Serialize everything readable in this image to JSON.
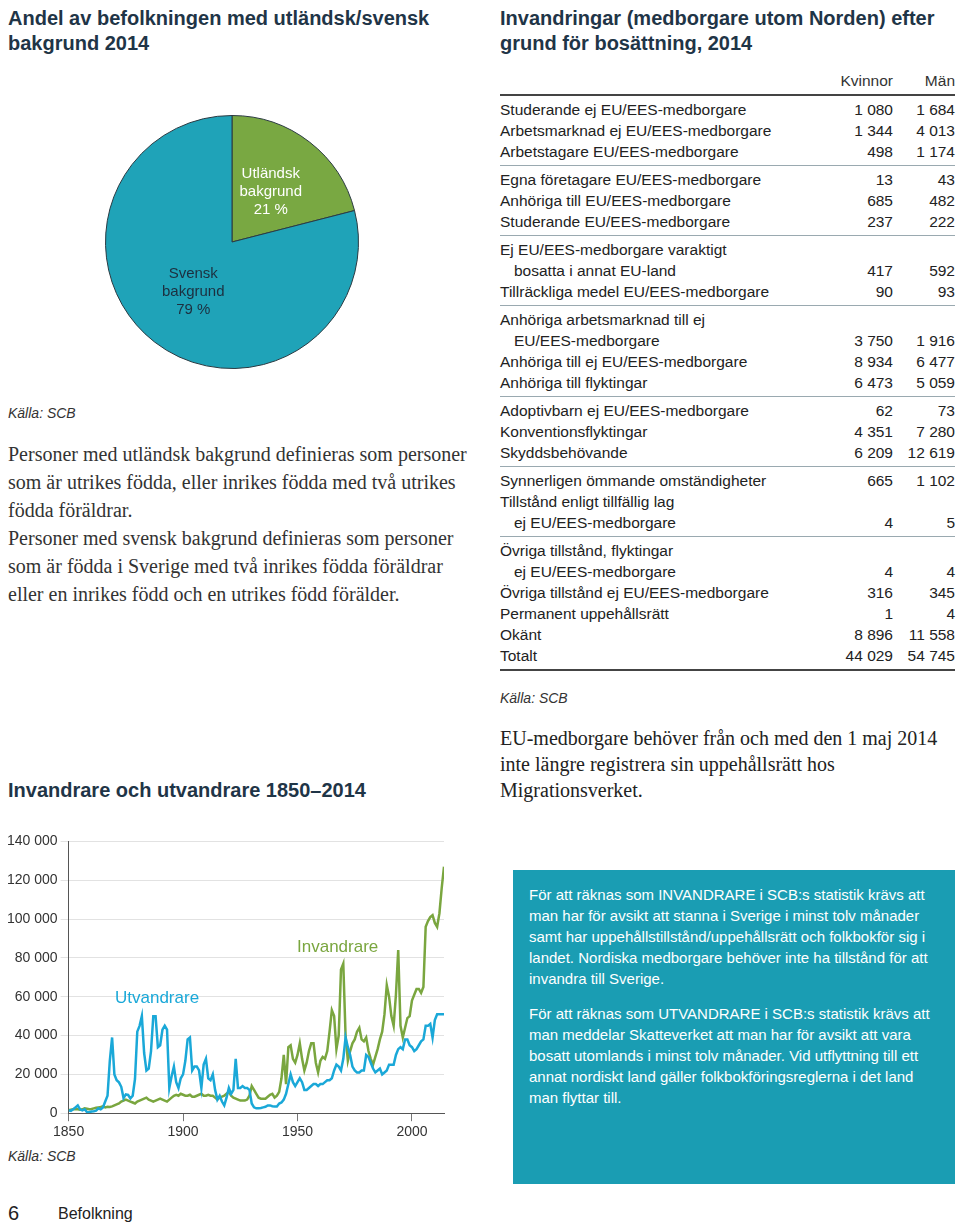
{
  "chart_data": [
    {
      "type": "pie",
      "title": "Andel av befolkningen med utländsk/svensk bakgrund 2014",
      "categories": [
        "Utländsk bakgrund",
        "Svensk bakgrund"
      ],
      "values": [
        21,
        79
      ],
      "value_labels": [
        "21 %",
        "79 %"
      ],
      "colors": [
        "#79a842",
        "#1fa3b8"
      ],
      "data_labels": true,
      "source": "Källa: SCB"
    },
    {
      "type": "line",
      "title": "Invandrare och utvandrare 1850–2014",
      "x": [
        1850,
        1851,
        1852,
        1853,
        1854,
        1855,
        1856,
        1857,
        1858,
        1859,
        1860,
        1861,
        1862,
        1863,
        1864,
        1865,
        1866,
        1867,
        1868,
        1869,
        1870,
        1871,
        1872,
        1873,
        1874,
        1875,
        1876,
        1877,
        1878,
        1879,
        1880,
        1881,
        1882,
        1883,
        1884,
        1885,
        1886,
        1887,
        1888,
        1889,
        1890,
        1891,
        1892,
        1893,
        1894,
        1895,
        1896,
        1897,
        1898,
        1899,
        1900,
        1901,
        1902,
        1903,
        1904,
        1905,
        1906,
        1907,
        1908,
        1909,
        1910,
        1911,
        1912,
        1913,
        1914,
        1915,
        1916,
        1917,
        1918,
        1919,
        1920,
        1921,
        1922,
        1923,
        1924,
        1925,
        1926,
        1927,
        1928,
        1929,
        1930,
        1931,
        1932,
        1933,
        1934,
        1935,
        1936,
        1937,
        1938,
        1939,
        1940,
        1941,
        1942,
        1943,
        1944,
        1945,
        1946,
        1947,
        1948,
        1949,
        1950,
        1951,
        1952,
        1953,
        1954,
        1955,
        1956,
        1957,
        1958,
        1959,
        1960,
        1961,
        1962,
        1963,
        1964,
        1965,
        1966,
        1967,
        1968,
        1969,
        1970,
        1971,
        1972,
        1973,
        1974,
        1975,
        1976,
        1977,
        1978,
        1979,
        1980,
        1981,
        1982,
        1983,
        1984,
        1985,
        1986,
        1987,
        1988,
        1989,
        1990,
        1991,
        1992,
        1993,
        1994,
        1995,
        1996,
        1997,
        1998,
        1999,
        2000,
        2001,
        2002,
        2003,
        2004,
        2005,
        2006,
        2007,
        2008,
        2009,
        2010,
        2011,
        2012,
        2013,
        2014
      ],
      "series": [
        {
          "name": "Utvandrare",
          "color": "#1aa8d8",
          "values": [
            1500,
            1200,
            2000,
            3000,
            4000,
            2000,
            1500,
            2000,
            600,
            500,
            900,
            1000,
            1300,
            2500,
            2000,
            3000,
            6000,
            9000,
            27000,
            39000,
            20000,
            17000,
            15900,
            13600,
            7800,
            9700,
            9400,
            7600,
            9000,
            17600,
            42000,
            45000,
            50000,
            31000,
            22000,
            23000,
            32000,
            50000,
            50000,
            34000,
            35000,
            43000,
            45000,
            43000,
            13000,
            19000,
            24000,
            16000,
            13000,
            18000,
            20000,
            27000,
            38000,
            39000,
            22000,
            24000,
            24000,
            22000,
            13000,
            25000,
            28000,
            18000,
            17000,
            20000,
            12000,
            7000,
            9000,
            6000,
            4000,
            8000,
            13000,
            10000,
            12000,
            28000,
            13000,
            13000,
            14000,
            13000,
            13000,
            12000,
            5000,
            3000,
            2500,
            2500,
            2700,
            3000,
            3300,
            4000,
            4000,
            3600,
            3500,
            3500,
            5000,
            5500,
            7000,
            10000,
            15000,
            20000,
            16000,
            14000,
            16000,
            18000,
            16000,
            12000,
            12000,
            13000,
            14000,
            15000,
            15000,
            14000,
            15000,
            15000,
            16000,
            17000,
            17000,
            18000,
            22000,
            25000,
            24000,
            22000,
            28000,
            39000,
            34000,
            30000,
            24000,
            22000,
            21000,
            21000,
            22000,
            22000,
            30000,
            29000,
            26000,
            23000,
            21000,
            22000,
            23000,
            20000,
            21000,
            22000,
            25000,
            25000,
            25000,
            30000,
            33000,
            34000,
            33000,
            38000,
            38000,
            35000,
            34000,
            32000,
            33000,
            35000,
            37000,
            38000,
            45000,
            45000,
            46000,
            39000,
            48000,
            51000,
            51000,
            51000,
            51000
          ]
        },
        {
          "name": "Invandrare",
          "color": "#7aa63f",
          "values": [
            1500,
            1800,
            2000,
            2200,
            2000,
            1800,
            2000,
            2500,
            2300,
            2000,
            2200,
            2500,
            2800,
            3000,
            3200,
            3500,
            3000,
            3300,
            3200,
            3500,
            4000,
            4500,
            5000,
            6000,
            6500,
            7000,
            6500,
            6000,
            5500,
            5000,
            6000,
            6500,
            7000,
            7500,
            8000,
            7000,
            6500,
            6000,
            6500,
            7000,
            7500,
            7000,
            6500,
            6000,
            7000,
            8000,
            9000,
            9500,
            9000,
            10000,
            9500,
            9000,
            9000,
            9500,
            8500,
            8500,
            9000,
            9500,
            10000,
            9000,
            9000,
            9500,
            9000,
            9000,
            8000,
            7000,
            8000,
            8500,
            9000,
            10000,
            11000,
            9000,
            8000,
            7500,
            7000,
            6500,
            6500,
            6500,
            7000,
            9000,
            14000,
            12000,
            10000,
            8000,
            7500,
            7500,
            7500,
            8500,
            9500,
            10000,
            8000,
            9000,
            11000,
            18000,
            30000,
            15000,
            34000,
            35000,
            28000,
            26000,
            30000,
            36000,
            28000,
            22000,
            26000,
            32000,
            36000,
            36000,
            26000,
            21000,
            27000,
            29000,
            28000,
            32000,
            42000,
            53000,
            50000,
            33000,
            40000,
            74000,
            77000,
            40000,
            27000,
            32000,
            36000,
            38000,
            42000,
            44000,
            38000,
            37000,
            39000,
            32000,
            28000,
            25000,
            29000,
            33000,
            38000,
            42000,
            51000,
            66000,
            60000,
            50000,
            45000,
            61000,
            84000,
            45000,
            39000,
            44000,
            49000,
            50000,
            58000,
            61000,
            64000,
            64000,
            62000,
            65000,
            96000,
            99000,
            101000,
            102000,
            98000,
            96000,
            103000,
            116000,
            127000
          ]
        }
      ],
      "xlim": [
        1850,
        2014
      ],
      "xticks": [
        1850,
        1900,
        1950,
        2000
      ],
      "ylim": [
        0,
        140000
      ],
      "yticks": [
        0,
        {
          "value": 20000,
          "label": "20 000"
        },
        {
          "value": 40000,
          "label": "40 000"
        },
        {
          "value": 60000,
          "label": "60 000"
        },
        {
          "value": 80000,
          "label": "80 000"
        },
        {
          "value": 100000,
          "label": "100 000"
        },
        {
          "value": 120000,
          "label": "120 000"
        },
        {
          "value": 140000,
          "label": "140 000"
        }
      ],
      "grid": true,
      "source": "Källa: SCB"
    }
  ],
  "definition": [
    "Personer med utländsk bakgrund definieras som personer som är utrikes födda, eller inrikes födda med två utrikes födda föräldrar.",
    "Personer med svensk bakgrund definieras som personer som är födda i Sverige med två inrikes födda föräldrar eller en inrikes född och en utrikes född förälder."
  ],
  "table": {
    "title": "Invandringar (medborgare utom Norden) efter grund för bosättning, 2014",
    "columns": [
      "Kvinnor",
      "Män"
    ],
    "groups": [
      [
        {
          "label": [
            "Studerande ej EU/EES-medborgare"
          ],
          "values": [
            "1 080",
            "1 684"
          ]
        },
        {
          "label": [
            "Arbetsmarknad ej EU/EES-medborgare"
          ],
          "values": [
            "1 344",
            "4 013"
          ]
        },
        {
          "label": [
            "Arbetstagare EU/EES-medborgare"
          ],
          "values": [
            "498",
            "1 174"
          ]
        }
      ],
      [
        {
          "label": [
            "Egna företagare EU/EES-medborgare"
          ],
          "values": [
            "13",
            "43"
          ]
        },
        {
          "label": [
            "Anhöriga till EU/EES-medborgare"
          ],
          "values": [
            "685",
            "482"
          ]
        },
        {
          "label": [
            "Studerande EU/EES-medborgare"
          ],
          "values": [
            "237",
            "222"
          ]
        }
      ],
      [
        {
          "label": [
            "Ej EU/EES-medborgare varaktigt",
            "bosatta i annat EU-land"
          ],
          "values": [
            "417",
            "592"
          ]
        },
        {
          "label": [
            "Tillräckliga medel EU/EES-medborgare"
          ],
          "values": [
            "90",
            "93"
          ]
        }
      ],
      [
        {
          "label": [
            "Anhöriga arbetsmarknad till ej",
            "EU/EES-medborgare"
          ],
          "values": [
            "3 750",
            "1 916"
          ]
        },
        {
          "label": [
            "Anhöriga till ej EU/EES-medborgare"
          ],
          "values": [
            "8 934",
            "6 477"
          ]
        },
        {
          "label": [
            "Anhöriga till flyktingar"
          ],
          "values": [
            "6 473",
            "5 059"
          ]
        }
      ],
      [
        {
          "label": [
            "Adoptivbarn ej EU/EES-medborgare"
          ],
          "values": [
            "62",
            "73"
          ]
        },
        {
          "label": [
            "Konventionsflyktingar"
          ],
          "values": [
            "4 351",
            "7 280"
          ]
        },
        {
          "label": [
            "Skyddsbehövande"
          ],
          "values": [
            "6 209",
            "12 619"
          ]
        }
      ],
      [
        {
          "label": [
            "Synnerligen ömmande omständigheter"
          ],
          "values": [
            "665",
            "1 102"
          ]
        },
        {
          "label": [
            "Tillstånd enligt tillfällig lag",
            "ej EU/EES-medborgare"
          ],
          "values": [
            "4",
            "5"
          ]
        }
      ],
      [
        {
          "label": [
            "Övriga tillstånd, flyktingar",
            "ej EU/EES-medborgare"
          ],
          "values": [
            "4",
            "4"
          ]
        },
        {
          "label": [
            "Övriga tillstånd ej EU/EES-medborgare"
          ],
          "values": [
            "316",
            "345"
          ]
        },
        {
          "label": [
            "Permanent uppehållsrätt"
          ],
          "values": [
            "1",
            "4"
          ]
        },
        {
          "label": [
            "Okänt"
          ],
          "values": [
            "8 896",
            "11 558"
          ]
        },
        {
          "label": [
            "Totalt"
          ],
          "values": [
            "44 029",
            "54 745"
          ]
        }
      ]
    ],
    "source": "Källa: SCB"
  },
  "note": "EU-medborgare behöver från och med den 1 maj 2014 inte längre registrera sin uppehållsrätt hos Migrationsverket.",
  "info_box": [
    "För att räknas som INVANDRARE i SCB:s statistik krävs att man har för avsikt att stanna i Sverige i minst tolv månader samt har uppehållstillstånd/uppehållsrätt och folkbokför sig i landet. Nordiska medborgare behöver inte ha tillstånd för att invandra till Sverige.",
    "För att räknas som UTVANDRARE i SCB:s statistik krävs att man meddelar Skatteverket att man har för avsikt att vara bosatt utomlands i minst tolv månader. Vid utflyttning till ett annat nordiskt land gäller folkbokföringsreglerna i det land man flyttar till."
  ],
  "footer": {
    "page": "6",
    "section": "Befolkning"
  }
}
